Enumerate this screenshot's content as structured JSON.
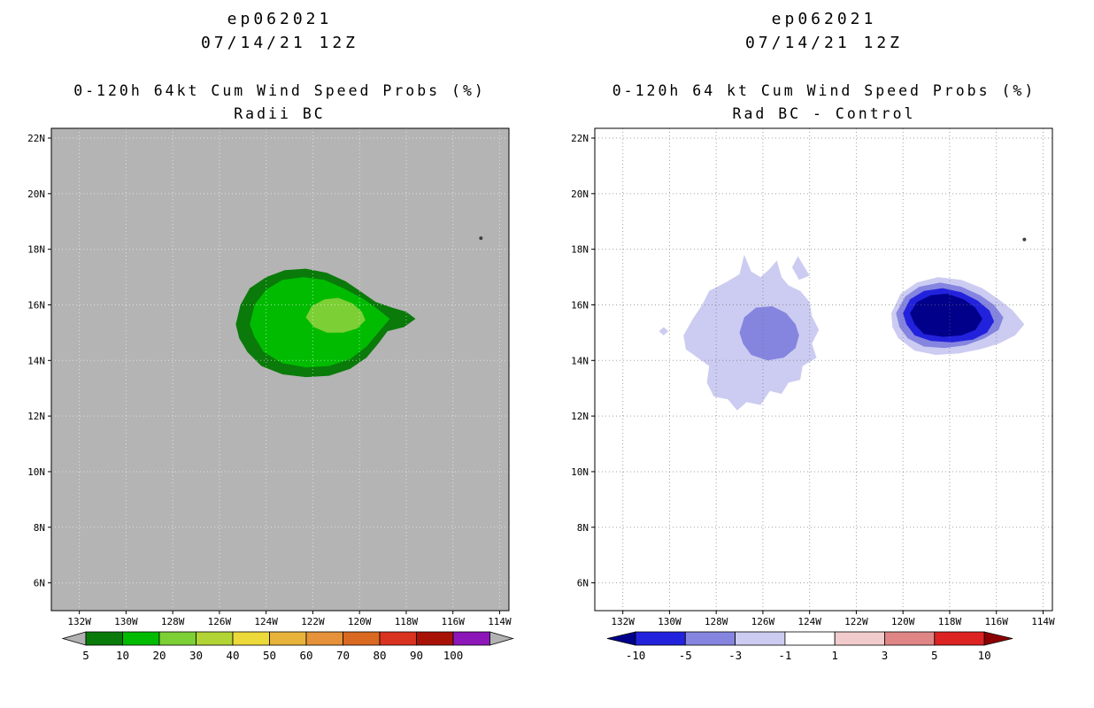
{
  "chart_data": [
    {
      "type": "filled_contour_map",
      "panel": "left",
      "title_line1": "ep062021",
      "title_line2": "07/14/21 12Z",
      "subtitle_line1": "0-120h 64kt Cum Wind Speed Probs (%)",
      "subtitle_line2": "Radii BC",
      "map": {
        "background_color": "#b4b4b4",
        "grid_color": "rgba(255,255,255,0.6)",
        "grid_on": true,
        "lon_range": [
          -133.2,
          -113.6
        ],
        "lat_range": [
          5.0,
          22.35
        ],
        "lon_ticks": [
          {
            "lon": -132,
            "label": "132W"
          },
          {
            "lon": -130,
            "label": "130W"
          },
          {
            "lon": -128,
            "label": "128W"
          },
          {
            "lon": -126,
            "label": "126W"
          },
          {
            "lon": -124,
            "label": "124W"
          },
          {
            "lon": -122,
            "label": "122W"
          },
          {
            "lon": -120,
            "label": "120W"
          },
          {
            "lon": -118,
            "label": "118W"
          },
          {
            "lon": -116,
            "label": "116W"
          },
          {
            "lon": -114,
            "label": "114W"
          }
        ],
        "lat_ticks": [
          {
            "lat": 6,
            "label": "6N"
          },
          {
            "lat": 8,
            "label": "8N"
          },
          {
            "lat": 10,
            "label": "10N"
          },
          {
            "lat": 12,
            "label": "12N"
          },
          {
            "lat": 14,
            "label": "14N"
          },
          {
            "lat": 16,
            "label": "16N"
          },
          {
            "lat": 18,
            "label": "18N"
          },
          {
            "lat": 20,
            "label": "20N"
          },
          {
            "lat": 22,
            "label": "22N"
          }
        ],
        "island_marker": {
          "lon": -114.8,
          "lat": 18.4
        },
        "contours": [
          {
            "level": ">=5%",
            "color": "#0a7a0a",
            "points_lonlat": [
              [
                -125.3,
                15.3
              ],
              [
                -125.1,
                16.0
              ],
              [
                -124.7,
                16.6
              ],
              [
                -124.0,
                17.0
              ],
              [
                -123.2,
                17.25
              ],
              [
                -122.3,
                17.3
              ],
              [
                -121.4,
                17.15
              ],
              [
                -120.6,
                16.85
              ],
              [
                -119.9,
                16.45
              ],
              [
                -119.3,
                16.1
              ],
              [
                -118.6,
                15.9
              ],
              [
                -118.0,
                15.75
              ],
              [
                -117.6,
                15.5
              ],
              [
                -118.1,
                15.2
              ],
              [
                -118.8,
                15.05
              ],
              [
                -119.2,
                14.6
              ],
              [
                -119.7,
                14.1
              ],
              [
                -120.4,
                13.7
              ],
              [
                -121.3,
                13.45
              ],
              [
                -122.3,
                13.4
              ],
              [
                -123.3,
                13.5
              ],
              [
                -124.2,
                13.8
              ],
              [
                -124.8,
                14.3
              ],
              [
                -125.15,
                14.8
              ]
            ]
          },
          {
            "level": ">=10%",
            "color": "#00bb00",
            "points_lonlat": [
              [
                -124.7,
                15.3
              ],
              [
                -124.5,
                16.0
              ],
              [
                -124.0,
                16.55
              ],
              [
                -123.3,
                16.9
              ],
              [
                -122.4,
                17.0
              ],
              [
                -121.5,
                16.9
              ],
              [
                -120.7,
                16.6
              ],
              [
                -119.9,
                16.25
              ],
              [
                -119.3,
                15.9
              ],
              [
                -118.7,
                15.5
              ],
              [
                -119.2,
                15.0
              ],
              [
                -119.7,
                14.5
              ],
              [
                -120.4,
                14.05
              ],
              [
                -121.3,
                13.8
              ],
              [
                -122.3,
                13.75
              ],
              [
                -123.3,
                13.9
              ],
              [
                -124.1,
                14.3
              ],
              [
                -124.5,
                14.85
              ]
            ]
          },
          {
            "level": ">=20%",
            "color": "#7ccf35",
            "points_lonlat": [
              [
                -122.3,
                15.55
              ],
              [
                -122.05,
                15.95
              ],
              [
                -121.5,
                16.2
              ],
              [
                -120.9,
                16.25
              ],
              [
                -120.3,
                16.05
              ],
              [
                -119.9,
                15.75
              ],
              [
                -119.75,
                15.45
              ],
              [
                -120.1,
                15.15
              ],
              [
                -120.7,
                15.0
              ],
              [
                -121.4,
                15.0
              ],
              [
                -121.95,
                15.2
              ]
            ]
          }
        ]
      },
      "colorbar": {
        "labels": [
          "5",
          "10",
          "20",
          "30",
          "40",
          "50",
          "60",
          "70",
          "80",
          "90",
          "100"
        ],
        "cell_colors": [
          "#0a7a0a",
          "#00bb00",
          "#7ccf35",
          "#b2d435",
          "#ecd93a",
          "#e8b33a",
          "#e6923a",
          "#d96920",
          "#d93220",
          "#a81206",
          "#8d16b8"
        ],
        "arrow_left_color": "#b2b2b2",
        "arrow_right_color": "#b2b2b2"
      }
    },
    {
      "type": "filled_contour_map",
      "panel": "right",
      "title_line1": "ep062021",
      "title_line2": "07/14/21 12Z",
      "subtitle_line1": "0-120h 64 kt Cum Wind Speed Probs (%)",
      "subtitle_line2": "Rad BC - Control",
      "map": {
        "background_color": "#ffffff",
        "grid_color": "rgba(110,110,110,0.65)",
        "grid_on": true,
        "lon_range": [
          -133.2,
          -113.6
        ],
        "lat_range": [
          5.0,
          22.35
        ],
        "lon_ticks": [
          {
            "lon": -132,
            "label": "132W"
          },
          {
            "lon": -130,
            "label": "130W"
          },
          {
            "lon": -128,
            "label": "128W"
          },
          {
            "lon": -126,
            "label": "126W"
          },
          {
            "lon": -124,
            "label": "124W"
          },
          {
            "lon": -122,
            "label": "122W"
          },
          {
            "lon": -120,
            "label": "120W"
          },
          {
            "lon": -118,
            "label": "118W"
          },
          {
            "lon": -116,
            "label": "116W"
          },
          {
            "lon": -114,
            "label": "114W"
          }
        ],
        "lat_ticks": [
          {
            "lat": 6,
            "label": "6N"
          },
          {
            "lat": 8,
            "label": "8N"
          },
          {
            "lat": 10,
            "label": "10N"
          },
          {
            "lat": 12,
            "label": "12N"
          },
          {
            "lat": 14,
            "label": "14N"
          },
          {
            "lat": 16,
            "label": "16N"
          },
          {
            "lat": 18,
            "label": "18N"
          },
          {
            "lat": 20,
            "label": "20N"
          },
          {
            "lat": 22,
            "label": "22N"
          }
        ],
        "island_marker": {
          "lon": -114.8,
          "lat": 18.35
        },
        "contours": [
          {
            "level": "<=-1",
            "color": "#ccccf2",
            "points_lonlat": [
              [
                -129.4,
                14.9
              ],
              [
                -129.0,
                15.5
              ],
              [
                -128.6,
                16.0
              ],
              [
                -128.3,
                16.5
              ],
              [
                -127.6,
                16.8
              ],
              [
                -127.0,
                17.1
              ],
              [
                -126.8,
                17.8
              ],
              [
                -126.5,
                17.2
              ],
              [
                -126.1,
                17.0
              ],
              [
                -125.7,
                17.3
              ],
              [
                -125.4,
                17.6
              ],
              [
                -125.2,
                17.0
              ],
              [
                -124.9,
                16.7
              ],
              [
                -124.4,
                16.5
              ],
              [
                -124.0,
                16.1
              ],
              [
                -123.9,
                15.6
              ],
              [
                -123.6,
                15.1
              ],
              [
                -123.9,
                14.6
              ],
              [
                -123.7,
                14.1
              ],
              [
                -124.3,
                13.8
              ],
              [
                -124.4,
                13.3
              ],
              [
                -124.9,
                13.2
              ],
              [
                -125.2,
                12.8
              ],
              [
                -125.7,
                12.9
              ],
              [
                -126.1,
                12.4
              ],
              [
                -126.7,
                12.5
              ],
              [
                -127.1,
                12.2
              ],
              [
                -127.5,
                12.6
              ],
              [
                -128.1,
                12.7
              ],
              [
                -128.4,
                13.2
              ],
              [
                -128.3,
                13.8
              ],
              [
                -128.8,
                14.1
              ],
              [
                -129.3,
                14.4
              ]
            ]
          },
          {
            "level": "<=-1",
            "color": "#ccccf2",
            "points_lonlat": [
              [
                -124.5,
                17.75
              ],
              [
                -124.0,
                17.05
              ],
              [
                -124.45,
                16.9
              ],
              [
                -124.75,
                17.35
              ]
            ]
          },
          {
            "level": "<=-1",
            "color": "#ccccf2",
            "points_lonlat": [
              [
                -130.45,
                15.05
              ],
              [
                -130.25,
                15.2
              ],
              [
                -130.05,
                15.05
              ],
              [
                -130.25,
                14.9
              ]
            ]
          },
          {
            "level": "<=-3",
            "color": "#8585e0",
            "points_lonlat": [
              [
                -127.0,
                15.0
              ],
              [
                -126.8,
                15.55
              ],
              [
                -126.3,
                15.9
              ],
              [
                -125.6,
                15.95
              ],
              [
                -125.0,
                15.7
              ],
              [
                -124.6,
                15.3
              ],
              [
                -124.45,
                14.9
              ],
              [
                -124.6,
                14.45
              ],
              [
                -125.1,
                14.1
              ],
              [
                -125.8,
                14.0
              ],
              [
                -126.5,
                14.2
              ],
              [
                -126.85,
                14.6
              ]
            ]
          },
          {
            "level": "<=-1",
            "color": "#ccccf2",
            "points_lonlat": [
              [
                -120.5,
                15.7
              ],
              [
                -120.1,
                16.4
              ],
              [
                -119.4,
                16.8
              ],
              [
                -118.5,
                17.0
              ],
              [
                -117.5,
                16.9
              ],
              [
                -116.6,
                16.6
              ],
              [
                -115.9,
                16.2
              ],
              [
                -115.3,
                15.8
              ],
              [
                -114.8,
                15.3
              ],
              [
                -115.2,
                14.9
              ],
              [
                -115.9,
                14.6
              ],
              [
                -116.7,
                14.4
              ],
              [
                -117.6,
                14.25
              ],
              [
                -118.6,
                14.2
              ],
              [
                -119.5,
                14.35
              ],
              [
                -120.2,
                14.8
              ],
              [
                -120.45,
                15.2
              ]
            ]
          },
          {
            "level": "<=-3",
            "color": "#8585e0",
            "points_lonlat": [
              [
                -120.3,
                15.7
              ],
              [
                -119.9,
                16.3
              ],
              [
                -119.3,
                16.65
              ],
              [
                -118.4,
                16.8
              ],
              [
                -117.5,
                16.65
              ],
              [
                -116.7,
                16.35
              ],
              [
                -116.1,
                16.0
              ],
              [
                -115.7,
                15.55
              ],
              [
                -115.9,
                15.1
              ],
              [
                -116.5,
                14.8
              ],
              [
                -117.3,
                14.55
              ],
              [
                -118.2,
                14.45
              ],
              [
                -119.1,
                14.5
              ],
              [
                -119.8,
                14.8
              ],
              [
                -120.15,
                15.2
              ]
            ]
          },
          {
            "level": "<=-5",
            "color": "#2222dd",
            "points_lonlat": [
              [
                -120.0,
                15.7
              ],
              [
                -119.7,
                16.2
              ],
              [
                -119.1,
                16.5
              ],
              [
                -118.3,
                16.6
              ],
              [
                -117.5,
                16.45
              ],
              [
                -116.8,
                16.15
              ],
              [
                -116.3,
                15.8
              ],
              [
                -116.1,
                15.4
              ],
              [
                -116.4,
                15.0
              ],
              [
                -117.0,
                14.75
              ],
              [
                -117.9,
                14.65
              ],
              [
                -118.8,
                14.7
              ],
              [
                -119.5,
                14.9
              ],
              [
                -119.85,
                15.3
              ]
            ]
          },
          {
            "level": "<=-10",
            "color": "#00008b",
            "points_lonlat": [
              [
                -119.7,
                15.7
              ],
              [
                -119.4,
                16.1
              ],
              [
                -118.8,
                16.35
              ],
              [
                -118.1,
                16.4
              ],
              [
                -117.4,
                16.2
              ],
              [
                -116.9,
                15.9
              ],
              [
                -116.6,
                15.5
              ],
              [
                -116.9,
                15.1
              ],
              [
                -117.5,
                14.9
              ],
              [
                -118.3,
                14.85
              ],
              [
                -119.1,
                14.95
              ],
              [
                -119.5,
                15.3
              ]
            ]
          }
        ]
      },
      "colorbar": {
        "labels": [
          "-10",
          "-5",
          "-3",
          "-1",
          "1",
          "3",
          "5",
          "10"
        ],
        "cell_colors": [
          "#2222dd",
          "#8585e0",
          "#ccccf2",
          "#ffffff",
          "#f2cccc",
          "#e08585",
          "#dd2222"
        ],
        "arrow_left_color": "#00008b",
        "arrow_right_color": "#8b0000"
      }
    }
  ]
}
